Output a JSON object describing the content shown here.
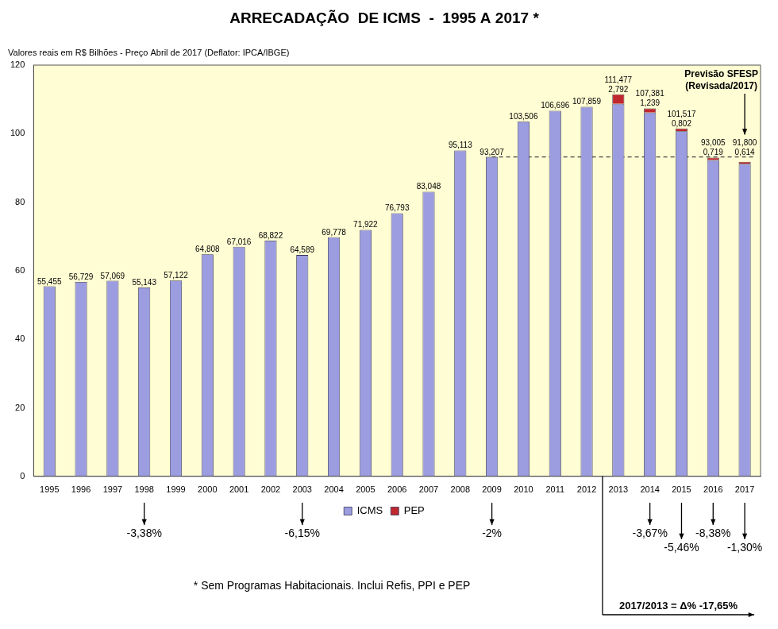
{
  "chart_data": {
    "type": "bar",
    "title": "ARRECADAÇÃO  DE ICMS  -  1995 A 2017 *",
    "subtitle": "Valores reais em R$ Bilhões - Preço Abril de 2017 (Deflator: IPCA/IBGE)",
    "categories": [
      "1995",
      "1996",
      "1997",
      "1998",
      "1999",
      "2000",
      "2001",
      "2002",
      "2003",
      "2004",
      "2005",
      "2006",
      "2007",
      "2008",
      "2009",
      "2010",
      "2011",
      "2012",
      "2013",
      "2014",
      "2015",
      "2016",
      "2017"
    ],
    "series": [
      {
        "name": "ICMS",
        "color": "#9c9ce0",
        "values": [
          55.455,
          56.729,
          57.069,
          55.143,
          57.122,
          64.808,
          67.016,
          68.822,
          64.589,
          69.778,
          71.922,
          76.793,
          83.048,
          95.113,
          93.207,
          103.506,
          106.696,
          107.859,
          108.685,
          106.142,
          100.715,
          92.286,
          91.186
        ]
      },
      {
        "name": "PEP",
        "color": "#c0282d",
        "values": [
          null,
          null,
          null,
          null,
          null,
          null,
          null,
          null,
          null,
          null,
          null,
          null,
          null,
          null,
          null,
          null,
          null,
          null,
          2.792,
          1.239,
          0.802,
          0.719,
          0.614
        ],
        "value_labels": [
          null,
          null,
          null,
          null,
          null,
          null,
          null,
          null,
          null,
          null,
          null,
          null,
          null,
          null,
          null,
          null,
          null,
          null,
          "2,792",
          "1,239",
          "0,802",
          "0,719",
          "0,614"
        ]
      }
    ],
    "totals": [
      55.455,
      56.729,
      57.069,
      55.143,
      57.122,
      64.808,
      67.016,
      68.822,
      64.589,
      69.778,
      71.922,
      76.793,
      83.048,
      95.113,
      93.207,
      103.506,
      106.696,
      107.859,
      111.477,
      107.381,
      101.517,
      93.005,
      91.8
    ],
    "total_labels": [
      "55,455",
      "56,729",
      "57,069",
      "55,143",
      "57,122",
      "64,808",
      "67,016",
      "68,822",
      "64,589",
      "69,778",
      "71,922",
      "76,793",
      "83,048",
      "95,113",
      "93,207",
      "103,506",
      "106,696",
      "107,859",
      "111,477",
      "107,381",
      "101,517",
      "93,005",
      "91,800"
    ],
    "stacked": true,
    "data_labels": true,
    "grid": false,
    "legend": "bottom",
    "ylim": [
      0,
      120
    ],
    "yticks": [
      0,
      20,
      40,
      60,
      80,
      100,
      120
    ],
    "annotations": [
      {
        "category": "1998",
        "text": "-3,38%"
      },
      {
        "category": "2003",
        "text": "-6,15%"
      },
      {
        "category": "2009",
        "text": "-2%"
      },
      {
        "category": "2014",
        "text": "-3,67%"
      },
      {
        "category": "2015",
        "text": "-5,46%"
      },
      {
        "category": "2016",
        "text": "-8,38%"
      },
      {
        "category": "2017",
        "text": "-1,30%"
      }
    ],
    "reference_line": {
      "from": "2009",
      "to": "2017",
      "value": 93.207
    },
    "forecast_note": {
      "category": "2017",
      "text": [
        "Previsão SFESP",
        "(Revisada/2017)"
      ]
    },
    "period_change": {
      "from": "2013",
      "to": "2017",
      "text": "2017/2013 = Δ% -17,65%"
    },
    "footnote": "* Sem Programas Habitacionais. Inclui Refis, PPI e PEP"
  }
}
